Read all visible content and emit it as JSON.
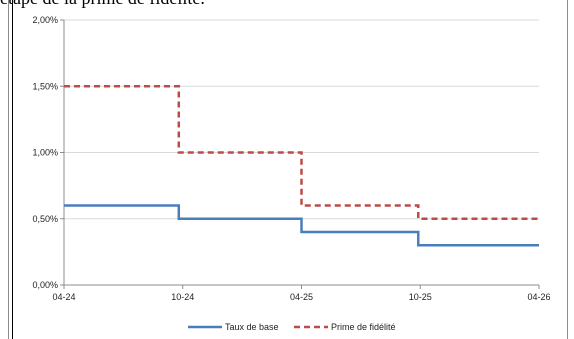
{
  "caption_fragment": "étape de la prime de fidélité.",
  "colors": {
    "base": "#4a7ebb",
    "prime": "#be4b48",
    "grid": "#d9d9d9",
    "axis": "#8c8c8c"
  },
  "chart_data": {
    "type": "line",
    "step": true,
    "x_ticks": [
      "04-24",
      "10-24",
      "04-25",
      "10-25",
      "04-26"
    ],
    "y_ticks": [
      "0,00%",
      "0,50%",
      "1,00%",
      "1,50%",
      "2,00%"
    ],
    "ylim": [
      0,
      2
    ],
    "xlim": [
      0,
      24
    ],
    "grid": true,
    "legend_position": "bottom",
    "series": [
      {
        "name": "Taux de base",
        "style": "solid",
        "steps": [
          {
            "x_start": 0,
            "x_end": 5.8,
            "y": 0.6
          },
          {
            "x_start": 5.8,
            "x_end": 12.0,
            "y": 0.5
          },
          {
            "x_start": 12.0,
            "x_end": 17.9,
            "y": 0.4
          },
          {
            "x_start": 17.9,
            "x_end": 24.0,
            "y": 0.3
          }
        ]
      },
      {
        "name": "Prime de fidélité",
        "style": "dashed",
        "steps": [
          {
            "x_start": 0,
            "x_end": 5.8,
            "y": 1.5
          },
          {
            "x_start": 5.8,
            "x_end": 12.0,
            "y": 1.0
          },
          {
            "x_start": 12.0,
            "x_end": 17.9,
            "y": 0.6
          },
          {
            "x_start": 17.9,
            "x_end": 24.0,
            "y": 0.5
          }
        ]
      }
    ]
  }
}
